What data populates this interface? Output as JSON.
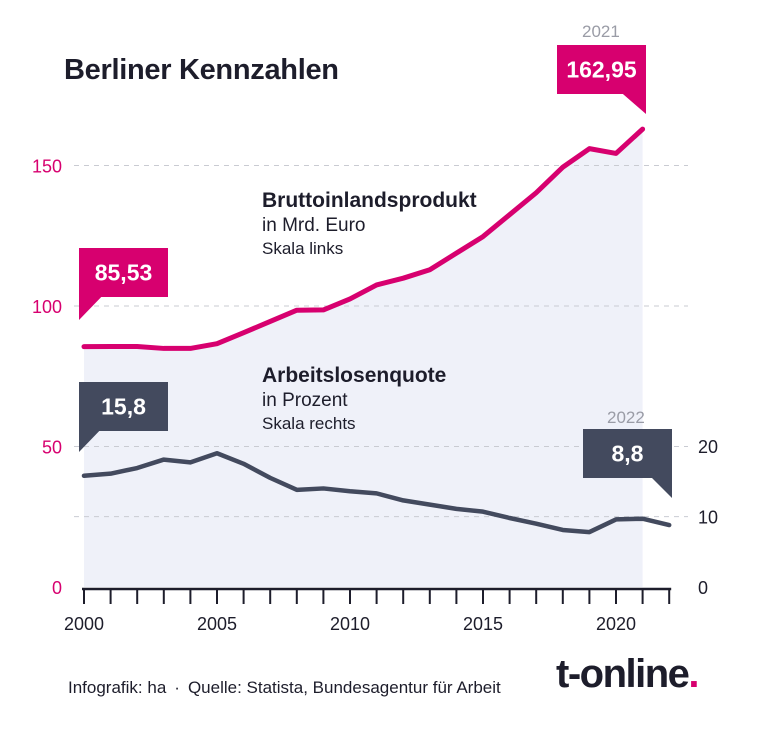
{
  "title": "Berliner Kennzahlen",
  "colors": {
    "gdp": "#d7006f",
    "unemployment": "#434a5e",
    "area": "#eff1f9",
    "text": "#1d1d2b",
    "muted": "#9a9ca6",
    "grid": "#c9cbd2"
  },
  "labels": {
    "gdp": {
      "name": "Bruttoinlandsprodukt",
      "unit": "in Mrd. Euro",
      "scale": "Skala links"
    },
    "unemployment": {
      "name": "Arbeitslosenquote",
      "unit": "in Prozent",
      "scale": "Skala rechts"
    }
  },
  "callouts": {
    "gdp_start": "85,53",
    "gdp_end": "162,95",
    "gdp_end_year": "2021",
    "ue_start": "15,8",
    "ue_end": "8,8",
    "ue_end_year": "2022"
  },
  "footer": {
    "credit": "Infografik: ha",
    "source": "Quelle: Statista, Bundesagentur für Arbeit"
  },
  "logo": {
    "text": "t-online",
    "dot": "."
  },
  "chart_data": {
    "type": "line",
    "x": [
      2000,
      2001,
      2002,
      2003,
      2004,
      2005,
      2006,
      2007,
      2008,
      2009,
      2010,
      2011,
      2012,
      2013,
      2014,
      2015,
      2016,
      2017,
      2018,
      2019,
      2020,
      2021,
      2022
    ],
    "series": [
      {
        "name": "Bruttoinlandsprodukt",
        "axis": "left",
        "values": [
          85.53,
          85.6,
          85.6,
          84.9,
          84.9,
          86.6,
          90.5,
          94.5,
          98.5,
          98.6,
          102.5,
          107.5,
          109.9,
          112.9,
          118.8,
          124.7,
          132.5,
          140.3,
          149.4,
          156.0,
          154.3,
          162.95,
          null
        ]
      },
      {
        "name": "Arbeitslosenquote",
        "axis": "right",
        "values": [
          15.8,
          16.1,
          16.9,
          18.1,
          17.7,
          19.0,
          17.5,
          15.5,
          13.8,
          14.0,
          13.6,
          13.3,
          12.3,
          11.7,
          11.1,
          10.7,
          9.8,
          9.0,
          8.1,
          7.8,
          9.6,
          9.7,
          8.8
        ]
      }
    ],
    "xticks": [
      2000,
      2005,
      2010,
      2015,
      2020
    ],
    "yticks_left": [
      0,
      50,
      100,
      150
    ],
    "yticks_right": [
      0,
      10,
      20
    ],
    "ylim_left": [
      0,
      170
    ],
    "ylim_right": [
      0,
      20
    ],
    "grid": true
  }
}
